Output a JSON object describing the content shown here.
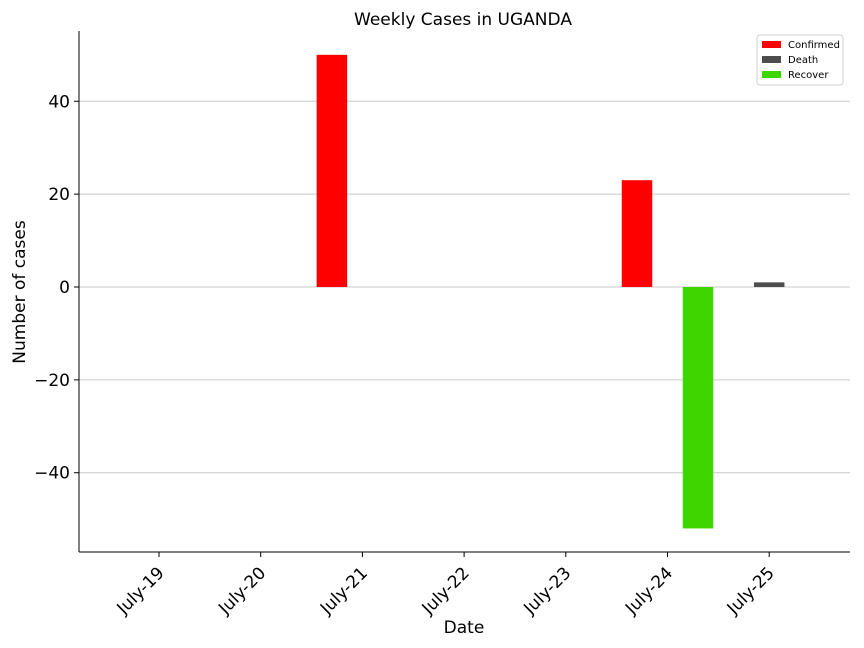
{
  "chart_data": {
    "type": "bar",
    "title": "Weekly Cases in UGANDA",
    "xlabel": "Date",
    "ylabel": "Number of cases",
    "categories": [
      "July-19",
      "July-20",
      "July-21",
      "July-22",
      "July-23",
      "July-24",
      "July-25"
    ],
    "series": [
      {
        "name": "Confirmed",
        "color": "#ff0000",
        "values": [
          0,
          0,
          50,
          0,
          0,
          23,
          0
        ]
      },
      {
        "name": "Death",
        "color": "#4d4d4d",
        "values": [
          0,
          0,
          0,
          0,
          0,
          0,
          1
        ]
      },
      {
        "name": "Recover",
        "color": "#3ed600",
        "values": [
          0,
          0,
          0,
          0,
          0,
          -52,
          0
        ]
      }
    ],
    "ylim": [
      -57,
      55
    ],
    "yticks": [
      -40,
      -20,
      0,
      20,
      40
    ],
    "ytick_labels": [
      "−40",
      "−20",
      "0",
      "20",
      "40"
    ],
    "grid": "horizontal",
    "legend_position": "top-right"
  }
}
